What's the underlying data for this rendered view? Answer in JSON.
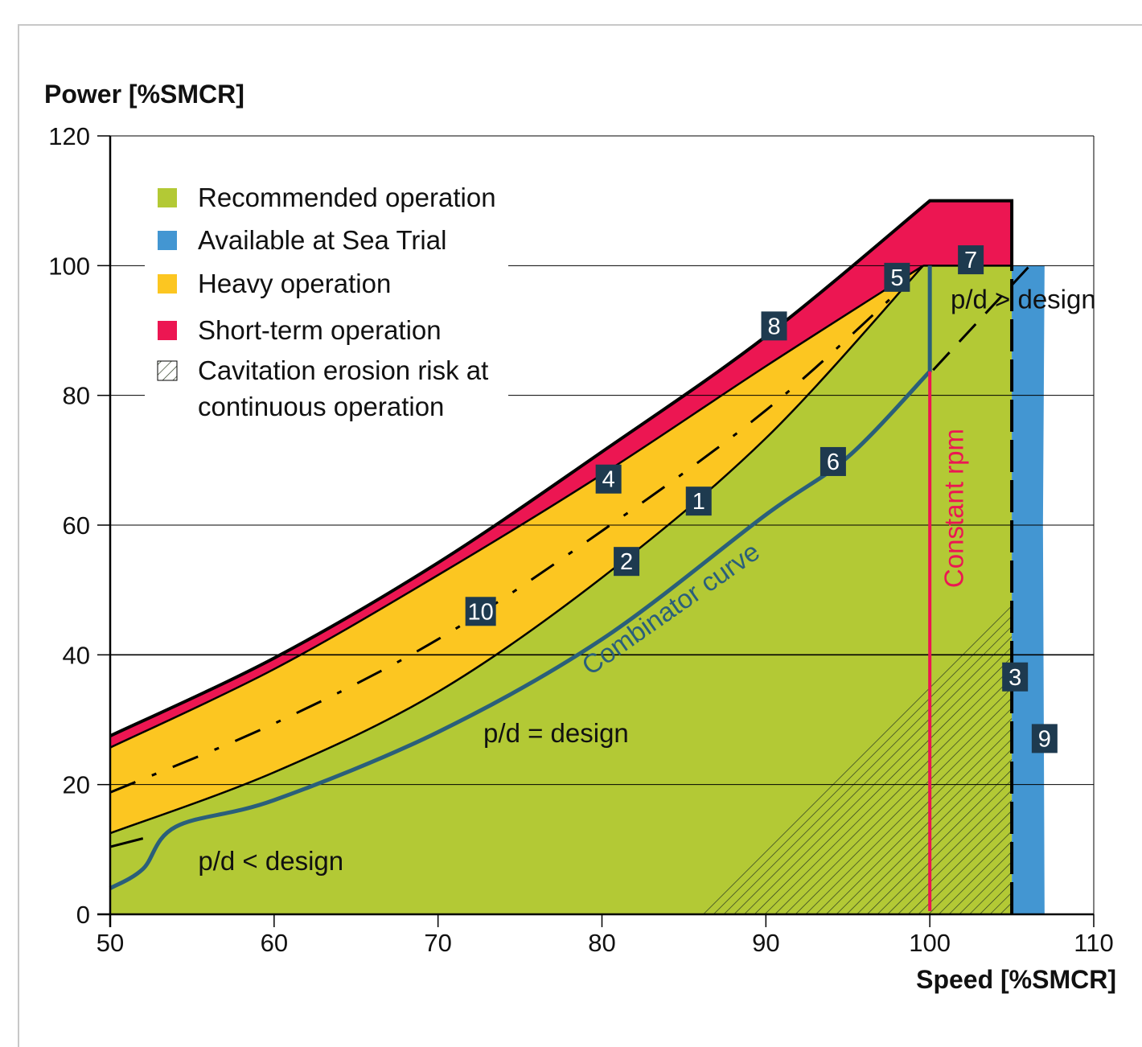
{
  "chart_data": {
    "type": "area",
    "xlabel": "Speed [%SMCR]",
    "ylabel": "Power [%SMCR]",
    "xlim": [
      50,
      110
    ],
    "ylim": [
      0,
      120
    ],
    "xticks": [
      "50",
      "60",
      "70",
      "80",
      "90",
      "100",
      "110"
    ],
    "yticks": [
      "0",
      "20",
      "40",
      "60",
      "80",
      "100",
      "120"
    ],
    "grid": "horizontal",
    "legend_position": "top-left",
    "legend": [
      {
        "label": "Recommended operation",
        "color": "#b3c935"
      },
      {
        "label": "Available at Sea Trial",
        "color": "#4396d2"
      },
      {
        "label": "Heavy operation",
        "color": "#fcc621"
      },
      {
        "label": "Short-term operation",
        "color": "#ec1652"
      },
      {
        "label": "Cavitation erosion risk at",
        "label2": "continuous operation",
        "color": "hatch"
      }
    ],
    "curves": {
      "short_term_limit": {
        "x": [
          50,
          60,
          70,
          80,
          90,
          100,
          105,
          105
        ],
        "y": [
          27.5,
          39.5,
          54.2,
          71.3,
          89.1,
          110,
          110,
          100
        ]
      },
      "heavy_limit_4": {
        "x": [
          50,
          60,
          70,
          80,
          90,
          99.6
        ],
        "y": [
          25.7,
          37.8,
          52.3,
          67.8,
          84.5,
          100
        ]
      },
      "recommended_limit_1": {
        "x": [
          50,
          60,
          70,
          80,
          90,
          99.6
        ],
        "y": [
          12.5,
          21.9,
          34.3,
          51.9,
          73.4,
          100
        ]
      },
      "dash_dot_10": {
        "x": [
          50,
          60,
          70,
          80,
          90,
          98.5
        ],
        "y": [
          18.8,
          29.4,
          42.4,
          59.1,
          77.7,
          97
        ]
      },
      "pd_design_dashed": {
        "x": [
          100.2,
          106.1
        ],
        "y": [
          83.9,
          100
        ]
      },
      "pd_low_dashed": {
        "x": [
          50,
          52
        ],
        "y": [
          10.4,
          11.7
        ]
      },
      "combinator_curve_6": {
        "x": [
          50,
          52,
          54,
          60,
          70,
          80,
          90,
          95,
          100,
          100
        ],
        "y": [
          4,
          7,
          13.5,
          17.6,
          28.1,
          42.4,
          61.6,
          70.5,
          83.7,
          100
        ]
      },
      "constant_rpm": {
        "x": [
          100,
          100
        ],
        "y": [
          0.5,
          83.7
        ]
      },
      "sea_trial_band": {
        "x": [
          105,
          107
        ],
        "y": [
          0,
          100
        ]
      },
      "limit_3_dashed": {
        "x": [
          105,
          105
        ],
        "y": [
          0,
          100
        ]
      },
      "cavitation_hatch": {
        "x": [
          86,
          105,
          105
        ],
        "y": [
          0,
          0,
          48
        ]
      }
    },
    "badges": [
      {
        "label": "1",
        "x": 85.9,
        "y": 63.7
      },
      {
        "label": "2",
        "x": 81.5,
        "y": 54.4
      },
      {
        "label": "3",
        "x": 105.2,
        "y": 36.6
      },
      {
        "label": "4",
        "x": 80.4,
        "y": 67.1
      },
      {
        "label": "5",
        "x": 98,
        "y": 98.2
      },
      {
        "label": "6",
        "x": 94.1,
        "y": 69.8
      },
      {
        "label": "7",
        "x": 102.5,
        "y": 100.9
      },
      {
        "label": "8",
        "x": 90.5,
        "y": 90.7
      },
      {
        "label": "9",
        "x": 107,
        "y": 27.1
      },
      {
        "label": "10",
        "x": 72.6,
        "y": 46.7
      }
    ],
    "annotations": [
      {
        "text": "p/d > design",
        "x": 105.7,
        "y": 94.8,
        "color": "#111111",
        "rotate": 0
      },
      {
        "text": "p/d = design",
        "x": 77.2,
        "y": 27.9,
        "color": "#111111",
        "rotate": 0
      },
      {
        "text": "p/d < design",
        "x": 59.8,
        "y": 8.2,
        "color": "#111111",
        "rotate": 0
      },
      {
        "text": "Combinator curve",
        "x": 84.2,
        "y": 47.1,
        "color": "#2a5f7a",
        "rotate": -35
      },
      {
        "text": "Constant rpm",
        "x": 101.5,
        "y": 62.6,
        "color": "#ec1652",
        "rotate": -90
      }
    ]
  }
}
